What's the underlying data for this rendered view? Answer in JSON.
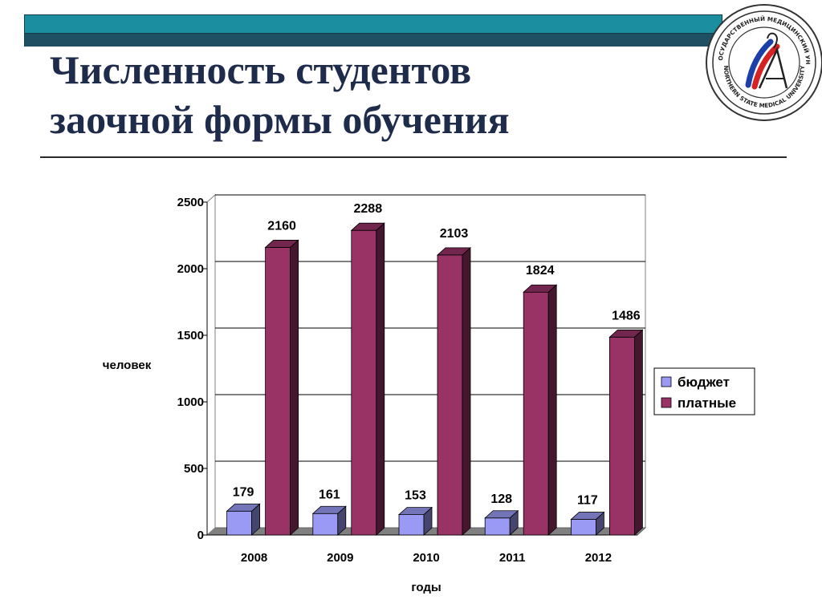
{
  "slide": {
    "title_lines": [
      "Численность студентов",
      "заочной формы обучения"
    ],
    "logo_top_text": "СЕВЕРНЫЙ ГОСУДАРСТВЕННЫЙ МЕДИЦИНСКИЙ УНИВЕРСИТЕТ",
    "logo_bottom_text": "NORTHERN STATE MEDICAL UNIVERSITY"
  },
  "colors": {
    "budget": "#9a9af5",
    "paid": "#993366",
    "header_bar": "#1b8fa0",
    "header_bar_dark": "#1f4f63",
    "title": "#1e2b4a"
  },
  "chart_data": {
    "type": "bar",
    "categories": [
      "2008",
      "2009",
      "2010",
      "2011",
      "2012"
    ],
    "series": [
      {
        "name": "бюджет",
        "values": [
          179,
          161,
          153,
          128,
          117
        ],
        "color": "#9a9af5"
      },
      {
        "name": "платные",
        "values": [
          2160,
          2288,
          2103,
          1824,
          1486
        ],
        "color": "#993366"
      }
    ],
    "xlabel": "годы",
    "ylabel": "человек",
    "ylim": [
      0,
      2500
    ],
    "yticks": [
      0,
      500,
      1000,
      1500,
      2000,
      2500
    ],
    "grid": true,
    "legend": "right",
    "three_d": true
  }
}
